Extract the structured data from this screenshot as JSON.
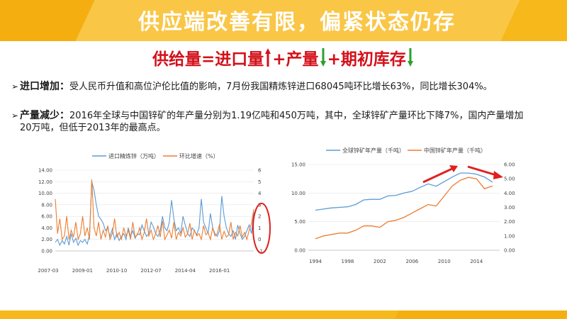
{
  "header": {
    "title": "供应端改善有限，偏紧状态仍存"
  },
  "formula": {
    "part1": "供给量=进口量",
    "part2": "+产量",
    "part3": "+期初库存",
    "colors": {
      "up": "#d2111a",
      "down": "#2ca02c"
    }
  },
  "bullets": [
    {
      "head": "进口增加：",
      "text": "受人民币升值和高位沪伦比值的影响，7月份我国精炼锌进口68045吨环比增长63%，同比增长304%。"
    },
    {
      "head": "产量减少：",
      "text": "2016年全球与中国锌矿的年产量分别为1.19亿吨和450万吨，其中，全球锌矿产量环比下降7%，国内产量增加20万吨，但低于2013年的最高点。"
    }
  ],
  "chart_data": [
    {
      "type": "line",
      "series": [
        {
          "name": "进口精炼锌（万吨）",
          "color": "#5b9bd5",
          "axis": "left"
        },
        {
          "name": "环比增速（%）",
          "color": "#ed7d31",
          "axis": "right"
        }
      ],
      "x_ticks": [
        "2007-03",
        "2009-01",
        "2010-10",
        "2012-07",
        "2014-04",
        "2016-01"
      ],
      "y_left_ticks": [
        "0.00",
        "2.00",
        "4.00",
        "6.00",
        "8.00",
        "10.00",
        "12.00",
        "14.00"
      ],
      "y_right_ticks": [
        "-1",
        "0",
        "1",
        "2",
        "3",
        "4",
        "5",
        "6"
      ],
      "ylim_left": [
        0,
        14
      ],
      "ylim_right": [
        -1,
        6
      ],
      "import_values": [
        1.5,
        2.0,
        1.0,
        1.8,
        1.2,
        2.5,
        1.0,
        3.0,
        1.5,
        2.2,
        1.0,
        1.8,
        1.5,
        2.0,
        1.2,
        2.8,
        12.0,
        10.5,
        8.0,
        6.0,
        5.5,
        4.8,
        3.5,
        4.0,
        2.5,
        3.8,
        2.0,
        3.0,
        1.8,
        2.5,
        3.0,
        2.0,
        4.0,
        2.5,
        3.5,
        2.2,
        3.0,
        2.8,
        4.5,
        3.5,
        2.5,
        3.0,
        5.0,
        4.2,
        3.0,
        2.5,
        3.5,
        6.0,
        4.0,
        3.5,
        5.0,
        8.8,
        5.5,
        3.5,
        4.0,
        3.0,
        6.0,
        4.5,
        3.0,
        2.5,
        4.0,
        3.5,
        2.8,
        4.0,
        9.0,
        5.0,
        4.0,
        3.0,
        6.5,
        4.0,
        3.0,
        2.5,
        3.5,
        9.5,
        6.0,
        4.0,
        3.0,
        2.5,
        3.5,
        2.0,
        4.5,
        3.0,
        2.0,
        2.5,
        3.5,
        4.5,
        3.0,
        6.8
      ],
      "growth_values": [
        3.5,
        0.5,
        1.8,
        0.0,
        0.3,
        2.0,
        0.0,
        0.8,
        0.2,
        1.5,
        0.0,
        0.5,
        2.0,
        0.3,
        1.0,
        0.0,
        5.2,
        1.0,
        0.3,
        1.5,
        0.0,
        0.8,
        0.2,
        1.2,
        0.0,
        0.5,
        1.8,
        0.2,
        0.6,
        0.0,
        1.0,
        0.3,
        0.8,
        0.0,
        1.5,
        0.2,
        0.4,
        1.0,
        0.0,
        0.6,
        1.8,
        0.3,
        0.8,
        0.0,
        0.5,
        1.2,
        0.2,
        1.6,
        0.0,
        0.4,
        0.8,
        0.1,
        1.5,
        0.0,
        0.6,
        0.3,
        1.0,
        0.2,
        0.5,
        1.4,
        0.0,
        0.8,
        0.3,
        0.5,
        0.0,
        1.2,
        0.4,
        0.6,
        0.0,
        1.0,
        0.3,
        0.5,
        1.3,
        0.0,
        0.7,
        0.2,
        0.4,
        1.5,
        0.0,
        0.6,
        0.3,
        1.2,
        0.2,
        0.6,
        0.0,
        0.8,
        1.4,
        2.6
      ]
    },
    {
      "type": "line",
      "series": [
        {
          "name": "全球锌矿年产量（千吨）",
          "color": "#5b9bd5",
          "axis": "left"
        },
        {
          "name": "中国锌矿年产量（千吨）",
          "color": "#ed7d31",
          "axis": "right"
        }
      ],
      "x": [
        1994,
        1995,
        1996,
        1997,
        1998,
        1999,
        2000,
        2001,
        2002,
        2003,
        2004,
        2005,
        2006,
        2007,
        2008,
        2009,
        2010,
        2011,
        2012,
        2013,
        2014,
        2015,
        2016
      ],
      "x_ticks": [
        "1994",
        "1998",
        "2002",
        "2006",
        "2010",
        "2014"
      ],
      "y_left_ticks": [
        "0.00",
        "5.00",
        "10.00",
        "15.00"
      ],
      "y_right_ticks": [
        "0.00",
        "1.00",
        "2.00",
        "3.00",
        "4.00",
        "5.00",
        "6.00"
      ],
      "ylim_left": [
        0,
        15
      ],
      "ylim_right": [
        0,
        6
      ],
      "global_values": [
        7.0,
        7.2,
        7.4,
        7.5,
        7.6,
        8.0,
        8.8,
        8.9,
        8.9,
        9.5,
        9.6,
        10.0,
        10.3,
        11.0,
        11.6,
        11.2,
        12.0,
        12.8,
        13.5,
        13.5,
        13.3,
        12.8,
        11.9
      ],
      "china_values": [
        0.8,
        1.0,
        1.1,
        1.2,
        1.2,
        1.4,
        1.7,
        1.7,
        1.6,
        2.0,
        2.1,
        2.3,
        2.6,
        2.9,
        3.2,
        3.1,
        3.8,
        4.5,
        4.9,
        5.1,
        5.0,
        4.3,
        4.5
      ]
    }
  ]
}
